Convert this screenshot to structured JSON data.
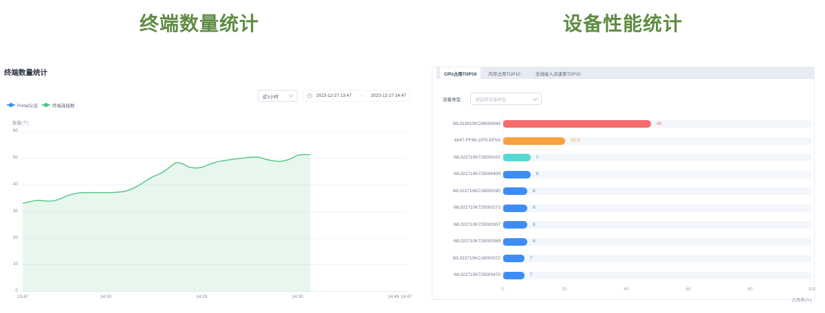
{
  "left": {
    "big_title": "终端数量统计",
    "section_title": "终端数量统计",
    "time_range_select": {
      "value": "近1小时"
    },
    "date_range": {
      "start": "2023-12-27 13:47",
      "separator": "-",
      "end": "2023-12-27 14:47"
    },
    "legend": [
      {
        "label": "Portal认证",
        "color": "#3a8ee6"
      },
      {
        "label": "终端连接数",
        "color": "#4cc27e"
      }
    ],
    "chart_data": {
      "type": "area",
      "title": "终端数量统计",
      "ylabel": "数量(个)",
      "ylim": [
        0,
        60
      ],
      "yticks": [
        0,
        10,
        20,
        30,
        40,
        50,
        60
      ],
      "x_time_start": "13:47",
      "x_time_end": "14:47",
      "xticks": [
        {
          "label": "13:47",
          "minute": 0
        },
        {
          "label": "14:00",
          "minute": 13
        },
        {
          "label": "14:15",
          "minute": 28
        },
        {
          "label": "14:30",
          "minute": 43
        },
        {
          "label": "14:45",
          "minute": 58
        },
        {
          "label": "14:47",
          "minute": 60
        }
      ],
      "series": [
        {
          "name": "终端连接数",
          "color": "#58c687",
          "minute_step": 1,
          "values": [
            33,
            33.5,
            34,
            34,
            33.8,
            34,
            34.8,
            35.8,
            36.5,
            36.9,
            37,
            37,
            37,
            37,
            37,
            37.2,
            37.5,
            38.3,
            39.5,
            41,
            42.5,
            43.6,
            44.8,
            46.5,
            48.2,
            47.8,
            46.6,
            46.2,
            46.5,
            47.4,
            48.2,
            48.8,
            49.2,
            49.5,
            49.8,
            50.1,
            50.3,
            50.2,
            49.5,
            49,
            48.7,
            49,
            49.8,
            51,
            51.2,
            51.2
          ]
        },
        {
          "name": "Portal认证",
          "color": "#3a8ee6",
          "values": []
        }
      ]
    }
  },
  "right": {
    "big_title": "设备性能统计",
    "tabs": [
      {
        "label": "CPU占用TOP10",
        "active": true
      },
      {
        "label": "内存占用TOP10",
        "active": false
      },
      {
        "label": "无线接入点速率TOP10",
        "active": false
      }
    ],
    "filter": {
      "label": "设备类型",
      "placeholder": "请选择设备类型"
    },
    "chart_data": {
      "type": "bar",
      "orientation": "horizontal",
      "xlabel": "占用率(%)",
      "xlim": [
        0,
        100
      ],
      "xticks": [
        0,
        20,
        40,
        60,
        80,
        100
      ],
      "categories": [
        "WL023610KC06000043",
        "6047-FF96-1070-EF0A",
        "WL022710K725000102",
        "WL022710K725000409",
        "WL022710KC18000280",
        "WL022710K725000272",
        "WL022710K725000307",
        "WL022710K725000369",
        "WL022710KC18000372",
        "WL022710K725000470"
      ],
      "values": [
        48,
        20.3,
        9,
        9,
        8,
        8,
        8,
        8,
        7,
        7
      ],
      "bar_colors": [
        "#f56c6c",
        "#f9a13e",
        "#55d9d2",
        "#3e8df6",
        "#3e8df6",
        "#3e8df6",
        "#3e8df6",
        "#3e8df6",
        "#3e8df6",
        "#3e8df6"
      ]
    }
  }
}
